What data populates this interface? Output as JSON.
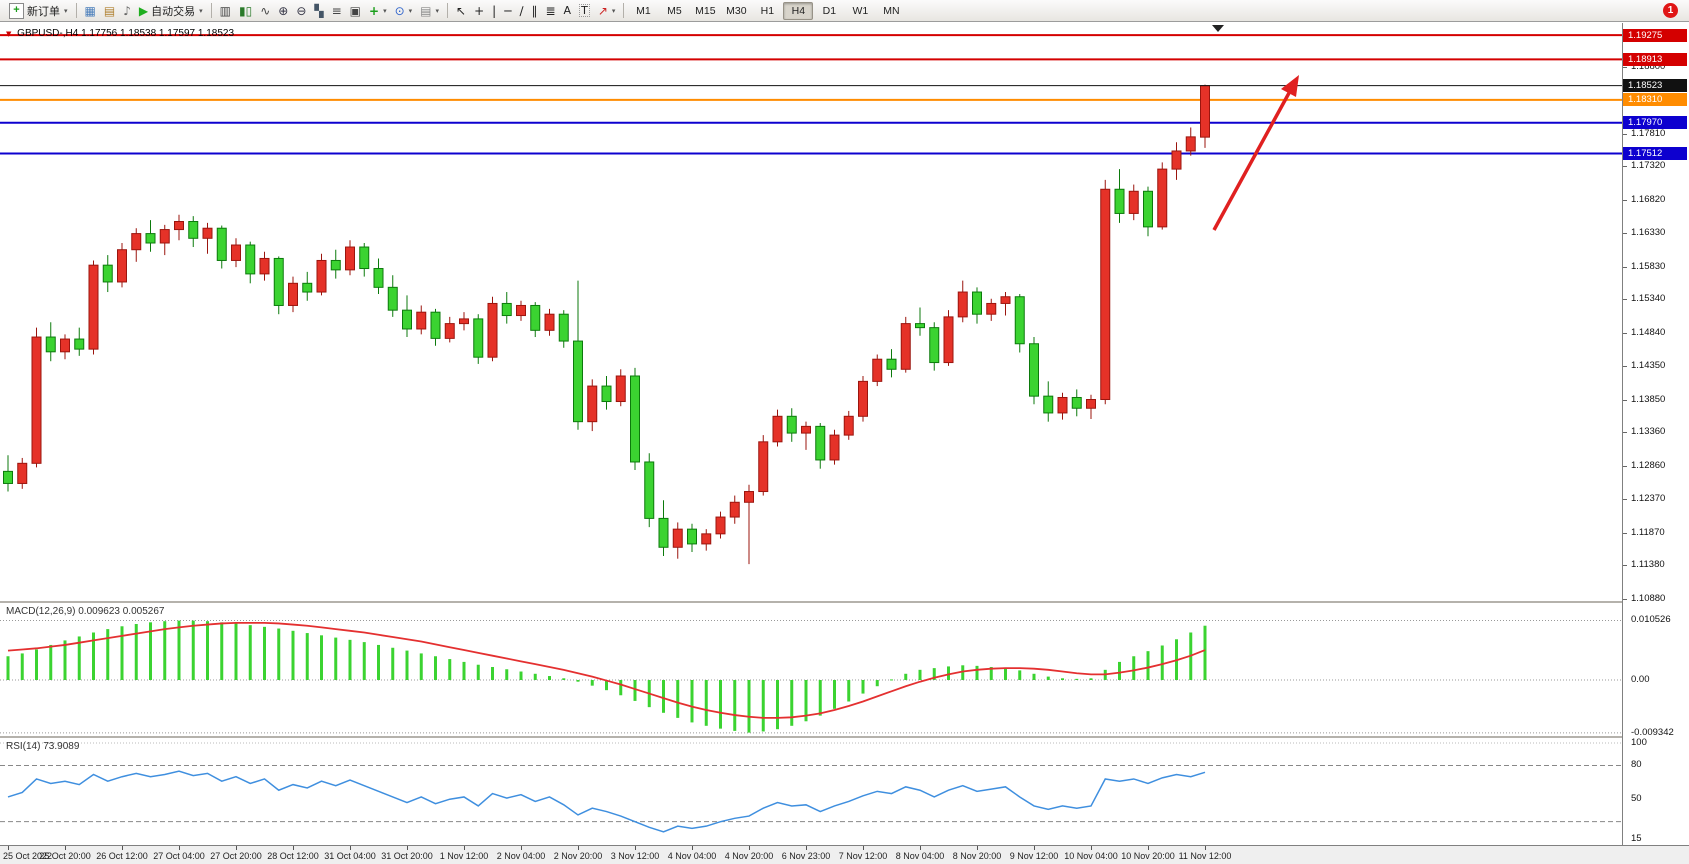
{
  "colors": {
    "bull": "#e53228",
    "bull_border": "#9b150e",
    "bear": "#3bd331",
    "bear_border": "#0c7a0c",
    "macd_hist": "#3bd331",
    "macd_signal": "#e43030",
    "rsi_line": "#3f8fdf",
    "level_red": "#d40000",
    "level_orange": "#ff8c00",
    "level_blue": "#0d00cf",
    "current_price": "#111111",
    "arrow": "#e02020"
  },
  "toolbar": {
    "new_order_label": "新订单",
    "autotrading_label": "自动交易",
    "timeframes": [
      "M1",
      "M5",
      "M15",
      "M30",
      "H1",
      "H4",
      "D1",
      "W1",
      "MN"
    ],
    "active_timeframe": "H4",
    "notification_count": "1",
    "caret": "▾"
  },
  "icons": {
    "plus": "+",
    "charts": "▦",
    "profiles": "▤",
    "sounds": "♪",
    "play": "▶",
    "bars_chart": "▥",
    "candle_chart": "▮▯",
    "line_chart": "∿",
    "zoom_in": "⊕",
    "zoom_out": "⊖",
    "tile_windows": "▚",
    "indicators": "≡",
    "objects": "▣",
    "add_indicator": "+",
    "periods": "⊙",
    "templates": "▤",
    "cursor": "↖",
    "crosshair": "+",
    "vertical_line": "|",
    "horizontal_line": "─",
    "trendline": "∕",
    "channel": "∥",
    "fibonacci": "≣",
    "text": "A",
    "label": "T",
    "arrows": "↗",
    "symbol_marker": "▼"
  },
  "chart_data": {
    "type": "candlestick",
    "symbol": "GBPUSD-,H4",
    "ohlc_display": "1.17756 1.18538 1.17597 1.18523",
    "last_ohlc": {
      "open": 1.17756,
      "high": 1.18538,
      "low": 1.17597,
      "close": 1.18523
    },
    "price_range": [
      1.1088,
      1.193
    ],
    "price_ticks": [
      "1.18800",
      "1.18310",
      "1.17810",
      "1.17320",
      "1.16820",
      "1.16330",
      "1.15830",
      "1.15340",
      "1.14840",
      "1.14350",
      "1.13850",
      "1.13360",
      "1.12860",
      "1.12370",
      "1.11870",
      "1.11380",
      "1.10880"
    ],
    "levels": [
      {
        "value": 1.19275,
        "label": "1.19275",
        "color": "#d40000",
        "kind": "resistance"
      },
      {
        "value": 1.18913,
        "label": "1.18913",
        "color": "#d40000",
        "kind": "resistance"
      },
      {
        "value": 1.1831,
        "label": "1.18310",
        "color": "#ff8c00",
        "kind": "pivot"
      },
      {
        "value": 1.1797,
        "label": "1.17970",
        "color": "#0d00cf",
        "kind": "support"
      },
      {
        "value": 1.17512,
        "label": "1.17512",
        "color": "#0d00cf",
        "kind": "support"
      },
      {
        "value": 1.18523,
        "label": "1.18523",
        "color": "#111111",
        "kind": "current_bid"
      }
    ],
    "time_labels": [
      "25 Oct 2022",
      "25 Oct 20:00",
      "26 Oct 12:00",
      "27 Oct 04:00",
      "27 Oct 20:00",
      "28 Oct 12:00",
      "31 Oct 04:00",
      "31 Oct 20:00",
      "1 Nov 12:00",
      "2 Nov 04:00",
      "2 Nov 20:00",
      "3 Nov 12:00",
      "4 Nov 04:00",
      "4 Nov 20:00",
      "6 Nov 23:00",
      "7 Nov 12:00",
      "8 Nov 04:00",
      "8 Nov 20:00",
      "9 Nov 12:00",
      "10 Nov 04:00",
      "10 Nov 20:00",
      "11 Nov 12:00"
    ],
    "candles": [
      [
        1.1278,
        1.1302,
        1.1248,
        1.126
      ],
      [
        1.126,
        1.1298,
        1.1252,
        1.129
      ],
      [
        1.129,
        1.1492,
        1.1284,
        1.1478
      ],
      [
        1.1478,
        1.15,
        1.1442,
        1.1456
      ],
      [
        1.1456,
        1.1482,
        1.1445,
        1.1475
      ],
      [
        1.1475,
        1.1492,
        1.145,
        1.146
      ],
      [
        1.146,
        1.1592,
        1.1452,
        1.1585
      ],
      [
        1.1585,
        1.16,
        1.1545,
        1.156
      ],
      [
        1.156,
        1.1618,
        1.1552,
        1.1608
      ],
      [
        1.1608,
        1.164,
        1.159,
        1.1632
      ],
      [
        1.1632,
        1.1652,
        1.1605,
        1.1618
      ],
      [
        1.1618,
        1.1645,
        1.16,
        1.1638
      ],
      [
        1.1638,
        1.166,
        1.1622,
        1.165
      ],
      [
        1.165,
        1.1658,
        1.1612,
        1.1625
      ],
      [
        1.1625,
        1.1648,
        1.1602,
        1.164
      ],
      [
        1.164,
        1.1644,
        1.158,
        1.1592
      ],
      [
        1.1592,
        1.1625,
        1.1582,
        1.1615
      ],
      [
        1.1615,
        1.162,
        1.1558,
        1.1572
      ],
      [
        1.1572,
        1.1605,
        1.1562,
        1.1595
      ],
      [
        1.1595,
        1.1598,
        1.1512,
        1.1525
      ],
      [
        1.1525,
        1.1568,
        1.1515,
        1.1558
      ],
      [
        1.1558,
        1.1575,
        1.1532,
        1.1545
      ],
      [
        1.1545,
        1.1602,
        1.154,
        1.1592
      ],
      [
        1.1592,
        1.1608,
        1.1565,
        1.1578
      ],
      [
        1.1578,
        1.1622,
        1.157,
        1.1612
      ],
      [
        1.1612,
        1.1618,
        1.1568,
        1.158
      ],
      [
        1.158,
        1.1595,
        1.1542,
        1.1552
      ],
      [
        1.1552,
        1.157,
        1.1508,
        1.1518
      ],
      [
        1.1518,
        1.154,
        1.1478,
        1.149
      ],
      [
        1.149,
        1.1525,
        1.1482,
        1.1515
      ],
      [
        1.1515,
        1.152,
        1.1465,
        1.1476
      ],
      [
        1.1476,
        1.1508,
        1.147,
        1.1498
      ],
      [
        1.1498,
        1.1515,
        1.1488,
        1.1505
      ],
      [
        1.1505,
        1.1512,
        1.1438,
        1.1448
      ],
      [
        1.1448,
        1.1538,
        1.1442,
        1.1528
      ],
      [
        1.1528,
        1.1545,
        1.1498,
        1.151
      ],
      [
        1.151,
        1.1532,
        1.1502,
        1.1525
      ],
      [
        1.1525,
        1.153,
        1.1478,
        1.1488
      ],
      [
        1.1488,
        1.152,
        1.148,
        1.1512
      ],
      [
        1.1512,
        1.1518,
        1.1462,
        1.1472
      ],
      [
        1.1472,
        1.1562,
        1.134,
        1.1352
      ],
      [
        1.1352,
        1.1415,
        1.1338,
        1.1405
      ],
      [
        1.1405,
        1.142,
        1.137,
        1.1382
      ],
      [
        1.1382,
        1.143,
        1.1375,
        1.142
      ],
      [
        1.142,
        1.1432,
        1.128,
        1.1292
      ],
      [
        1.1292,
        1.1305,
        1.1195,
        1.1208
      ],
      [
        1.1208,
        1.1235,
        1.1152,
        1.1165
      ],
      [
        1.1165,
        1.1202,
        1.1148,
        1.1192
      ],
      [
        1.1192,
        1.12,
        1.1158,
        1.117
      ],
      [
        1.117,
        1.1192,
        1.116,
        1.1185
      ],
      [
        1.1185,
        1.1218,
        1.1178,
        1.121
      ],
      [
        1.121,
        1.1242,
        1.12,
        1.1232
      ],
      [
        1.1232,
        1.1258,
        1.114,
        1.1248
      ],
      [
        1.1248,
        1.1332,
        1.1242,
        1.1322
      ],
      [
        1.1322,
        1.137,
        1.1315,
        1.136
      ],
      [
        1.136,
        1.1372,
        1.1322,
        1.1335
      ],
      [
        1.1335,
        1.1352,
        1.131,
        1.1345
      ],
      [
        1.1345,
        1.135,
        1.1282,
        1.1295
      ],
      [
        1.1295,
        1.134,
        1.1288,
        1.1332
      ],
      [
        1.1332,
        1.1368,
        1.1325,
        1.136
      ],
      [
        1.136,
        1.142,
        1.1352,
        1.1412
      ],
      [
        1.1412,
        1.1452,
        1.1405,
        1.1445
      ],
      [
        1.1445,
        1.146,
        1.1418,
        1.143
      ],
      [
        1.143,
        1.1508,
        1.1425,
        1.1498
      ],
      [
        1.1498,
        1.1522,
        1.148,
        1.1492
      ],
      [
        1.1492,
        1.15,
        1.1428,
        1.144
      ],
      [
        1.144,
        1.1518,
        1.1435,
        1.1508
      ],
      [
        1.1508,
        1.1562,
        1.15,
        1.1545
      ],
      [
        1.1545,
        1.1552,
        1.1498,
        1.1512
      ],
      [
        1.1512,
        1.1535,
        1.1502,
        1.1528
      ],
      [
        1.1528,
        1.1545,
        1.151,
        1.1538
      ],
      [
        1.1538,
        1.1542,
        1.1455,
        1.1468
      ],
      [
        1.1468,
        1.1478,
        1.1378,
        1.139
      ],
      [
        1.139,
        1.1412,
        1.1352,
        1.1365
      ],
      [
        1.1365,
        1.1395,
        1.1355,
        1.1388
      ],
      [
        1.1388,
        1.14,
        1.136,
        1.1372
      ],
      [
        1.1372,
        1.1392,
        1.1356,
        1.1385
      ],
      [
        1.1385,
        1.1712,
        1.1378,
        1.1698
      ],
      [
        1.1698,
        1.1728,
        1.1648,
        1.1662
      ],
      [
        1.1662,
        1.1705,
        1.1652,
        1.1695
      ],
      [
        1.1695,
        1.1702,
        1.1628,
        1.1642
      ],
      [
        1.1642,
        1.1738,
        1.1638,
        1.1728
      ],
      [
        1.1728,
        1.1768,
        1.1712,
        1.1755
      ],
      [
        1.1755,
        1.179,
        1.1748,
        1.1776
      ],
      [
        1.17756,
        1.18538,
        1.17597,
        1.18523
      ]
    ],
    "indicators": {
      "macd": {
        "label": "MACD(12,26,9)",
        "value_main": "0.009623",
        "value_signal": "0.005267",
        "axis_labels": [
          "0.010526",
          "0.00",
          "-0.009342"
        ],
        "histogram": [
          0.0042,
          0.0047,
          0.0054,
          0.0062,
          0.007,
          0.0077,
          0.0084,
          0.009,
          0.0095,
          0.0099,
          0.0102,
          0.0104,
          0.0105,
          0.0105,
          0.0104,
          0.0102,
          0.01,
          0.0097,
          0.0094,
          0.0091,
          0.0087,
          0.0083,
          0.0079,
          0.0075,
          0.0071,
          0.0067,
          0.0062,
          0.0057,
          0.0052,
          0.0047,
          0.0042,
          0.0037,
          0.0032,
          0.0027,
          0.0023,
          0.0019,
          0.0015,
          0.0011,
          0.0007,
          0.0003,
          -0.0003,
          -0.001,
          -0.0018,
          -0.0027,
          -0.0037,
          -0.0048,
          -0.0058,
          -0.0067,
          -0.0075,
          -0.0081,
          -0.0086,
          -0.009,
          -0.0093,
          -0.0091,
          -0.0087,
          -0.0081,
          -0.0073,
          -0.0063,
          -0.0051,
          -0.0038,
          -0.0024,
          -0.0011,
          0.0001,
          0.0011,
          0.0018,
          0.0021,
          0.0024,
          0.0026,
          0.0025,
          0.0023,
          0.0021,
          0.0017,
          0.0011,
          0.0006,
          0.0003,
          0.0002,
          0.0003,
          0.0018,
          0.0032,
          0.0042,
          0.0051,
          0.0061,
          0.0072,
          0.0084,
          0.0096
        ],
        "signal": [
          0.0052,
          0.0054,
          0.0056,
          0.0059,
          0.0062,
          0.0066,
          0.007,
          0.0074,
          0.0078,
          0.0082,
          0.0086,
          0.009,
          0.0093,
          0.0096,
          0.0098,
          0.01,
          0.0101,
          0.0101,
          0.0101,
          0.01,
          0.0098,
          0.0096,
          0.0093,
          0.009,
          0.0087,
          0.0084,
          0.008,
          0.0076,
          0.0072,
          0.0068,
          0.0063,
          0.0058,
          0.0053,
          0.0048,
          0.0043,
          0.0038,
          0.0033,
          0.0028,
          0.0023,
          0.0018,
          0.0012,
          0.0006,
          -0.0001,
          -0.0008,
          -0.0016,
          -0.0024,
          -0.0032,
          -0.004,
          -0.0047,
          -0.0053,
          -0.0058,
          -0.0062,
          -0.0065,
          -0.0067,
          -0.0067,
          -0.0066,
          -0.0063,
          -0.0059,
          -0.0053,
          -0.0046,
          -0.0038,
          -0.0029,
          -0.002,
          -0.0011,
          -0.0003,
          0.0004,
          0.001,
          0.0015,
          0.0018,
          0.002,
          0.0021,
          0.0021,
          0.002,
          0.0018,
          0.0015,
          0.0012,
          0.001,
          0.001,
          0.0013,
          0.0017,
          0.0022,
          0.0028,
          0.0035,
          0.0043,
          0.0053
        ]
      },
      "rsi": {
        "label": "RSI(14)",
        "value": "73.9089",
        "axis_labels": [
          "100",
          "80",
          "50",
          "15"
        ],
        "dashed_levels": [
          80,
          30
        ],
        "values": [
          52,
          56,
          68,
          64,
          66,
          63,
          72,
          66,
          70,
          73,
          70,
          72,
          75,
          71,
          73,
          66,
          70,
          64,
          68,
          58,
          63,
          60,
          66,
          62,
          67,
          62,
          57,
          52,
          47,
          52,
          46,
          50,
          52,
          44,
          55,
          51,
          54,
          48,
          52,
          45,
          36,
          42,
          39,
          35,
          30,
          25,
          21,
          26,
          24,
          26,
          30,
          33,
          35,
          42,
          47,
          44,
          45,
          39,
          44,
          48,
          53,
          57,
          55,
          61,
          58,
          52,
          58,
          62,
          57,
          59,
          61,
          52,
          44,
          41,
          44,
          42,
          44,
          68,
          66,
          68,
          64,
          69,
          72,
          70,
          73.9
        ]
      }
    },
    "annotations": [
      {
        "type": "arrow",
        "direction": "up-right",
        "color": "#e02020"
      }
    ]
  }
}
